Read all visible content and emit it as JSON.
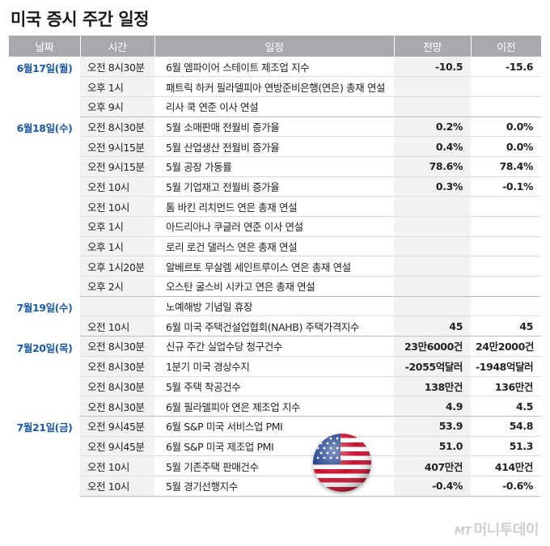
{
  "title": "미국 증시 주간 일정",
  "headers": {
    "date": "날짜",
    "time": "시간",
    "event": "일정",
    "forecast": "전망",
    "previous": "이전"
  },
  "rows": [
    {
      "date": "6월17일(월)",
      "time": "오전 8시30분",
      "event": "6월 엠파이어 스테이트 제조업 지수",
      "forecast": "-10.5",
      "previous": "-15.6"
    },
    {
      "date": "",
      "time": "오후 1시",
      "event": "패트릭 하커 필라델피아 연방준비은행(연은) 총재 연설",
      "forecast": "",
      "previous": ""
    },
    {
      "date": "",
      "time": "오후 9시",
      "event": "리사 쿡 연준 이사 연설",
      "forecast": "",
      "previous": ""
    },
    {
      "date": "6월18일(수)",
      "time": "오전 8시30분",
      "event": "5월 소매판매 전월비 증가율",
      "forecast": "0.2%",
      "previous": "0.0%"
    },
    {
      "date": "",
      "time": "오전 9시15분",
      "event": "5월 산업생산 전월비 증가율",
      "forecast": "0.4%",
      "previous": "0.0%"
    },
    {
      "date": "",
      "time": "오전 9시15분",
      "event": "5월 공장 가동률",
      "forecast": "78.6%",
      "previous": "78.4%"
    },
    {
      "date": "",
      "time": "오전 10시",
      "event": "5월 기업재고 전월비 증가율",
      "forecast": "0.3%",
      "previous": "-0.1%"
    },
    {
      "date": "",
      "time": "오전 10시",
      "event": "톰 바킨 리치먼드 연은 총재 연설",
      "forecast": "",
      "previous": ""
    },
    {
      "date": "",
      "time": "오후 1시",
      "event": "아드리아나 쿠글러 연준 이사 연설",
      "forecast": "",
      "previous": ""
    },
    {
      "date": "",
      "time": "오후 1시",
      "event": "로리 로건 댈러스 연은 총재 연설",
      "forecast": "",
      "previous": ""
    },
    {
      "date": "",
      "time": "오후 1시20분",
      "event": "알베르토 무살렘 세인트루이스 연은 총재 연설",
      "forecast": "",
      "previous": ""
    },
    {
      "date": "",
      "time": "오후 2시",
      "event": "오스탄 굴스비 시카고 연은 총재 연설",
      "forecast": "",
      "previous": ""
    },
    {
      "date": "7월19일(수)",
      "time": "",
      "event": "노예해방 기념일 휴장",
      "forecast": "",
      "previous": ""
    },
    {
      "date": "",
      "time": "오전 10시",
      "event": "6월 미국 주택건설업협회(NAHB) 주택가격지수",
      "forecast": "45",
      "previous": "45"
    },
    {
      "date": "7월20일(목)",
      "time": "오전 8시30분",
      "event": "신규 주간 실업수당 청구건수",
      "forecast": "23만6000건",
      "previous": "24만2000건"
    },
    {
      "date": "",
      "time": "오전 8시30분",
      "event": "1분기 미국 경상수지",
      "forecast": "-2055억달러",
      "previous": "-1948억달러"
    },
    {
      "date": "",
      "time": "오전 8시30분",
      "event": "5월 주택 착공건수",
      "forecast": "138만건",
      "previous": "136만건"
    },
    {
      "date": "",
      "time": "오전 8시30분",
      "event": "6월 필라델피아 연은 제조업 지수",
      "forecast": "4.9",
      "previous": "4.5"
    },
    {
      "date": "7월21일(금)",
      "time": "오전 9시45분",
      "event": "6월 S&P 미국 서비스업 PMI",
      "forecast": "53.9",
      "previous": "54.8"
    },
    {
      "date": "",
      "time": "오전 9시45분",
      "event": "6월 S&P 미국 제조업 PMI",
      "forecast": "51.0",
      "previous": "51.3"
    },
    {
      "date": "",
      "time": "오전 10시",
      "event": "5월 기존주택 판매건수",
      "forecast": "407만건",
      "previous": "414만건"
    },
    {
      "date": "",
      "time": "오전 10시",
      "event": "5월 경기선행지수",
      "forecast": "-0.4%",
      "previous": "-0.6%"
    }
  ],
  "groups": [
    3,
    9,
    2,
    4,
    4
  ],
  "logo": {
    "mark": "MT",
    "text": "머니투데이"
  },
  "flag_icon": "us-flag-icon",
  "colors": {
    "header_bg": "#a7a9ac",
    "date_text": "#1d5aa8",
    "shade": "#f2f2f2"
  }
}
